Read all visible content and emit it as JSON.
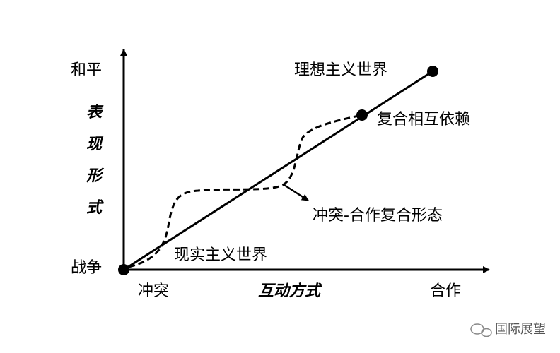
{
  "y_axis": {
    "top_label": "和平",
    "bottom_label": "战争",
    "title": [
      "表",
      "现",
      "形",
      "式"
    ]
  },
  "x_axis": {
    "left_label": "冲突",
    "right_label": "合作",
    "title": "互动方式"
  },
  "points": [
    {
      "label": "理想主义世界"
    },
    {
      "label": "复合相互依赖"
    },
    {
      "label": "现实主义世界"
    }
  ],
  "curve_label": "冲突-合作复合形态",
  "watermark": "国际展望"
}
